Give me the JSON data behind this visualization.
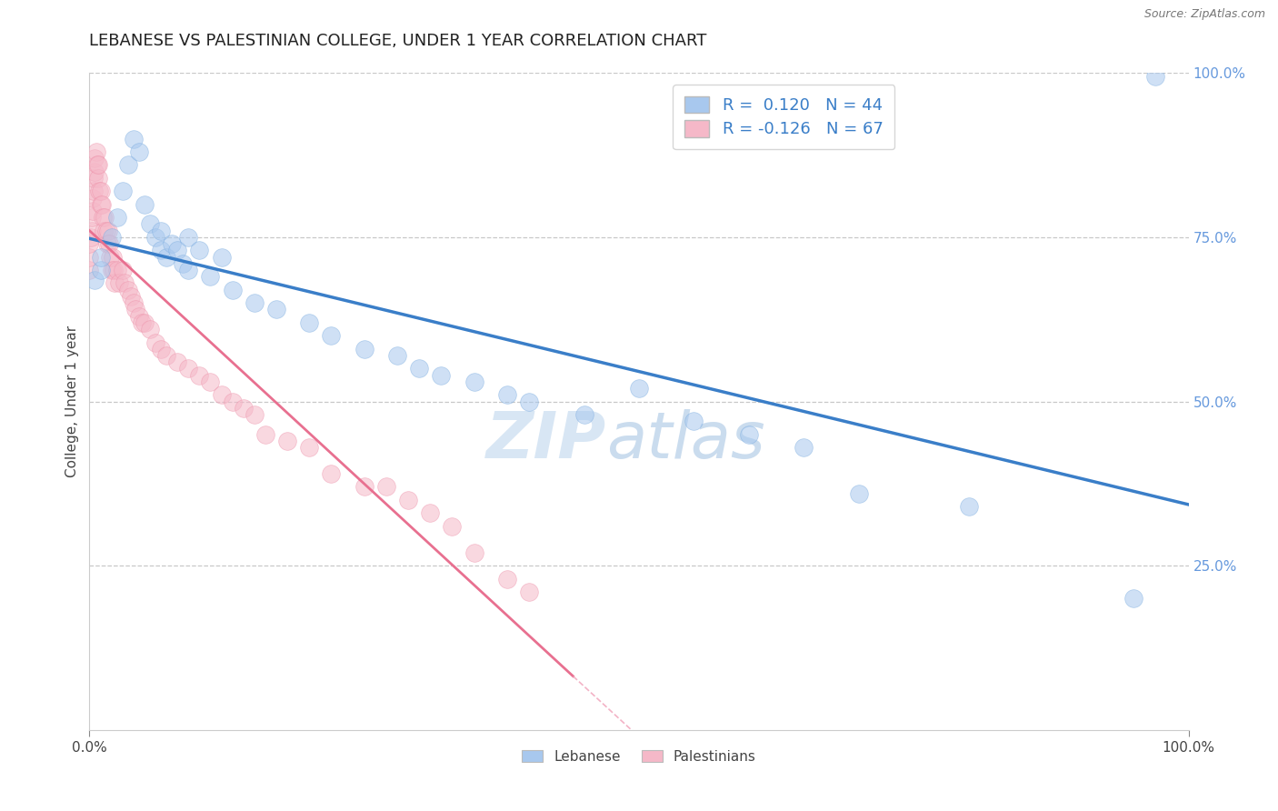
{
  "title": "LEBANESE VS PALESTINIAN COLLEGE, UNDER 1 YEAR CORRELATION CHART",
  "source": "Source: ZipAtlas.com",
  "ylabel": "College, Under 1 year",
  "legend_blue_r": "0.120",
  "legend_blue_n": "44",
  "legend_pink_r": "-0.126",
  "legend_pink_n": "67",
  "watermark_left": "ZIP",
  "watermark_right": "atlas",
  "blue_color": "#A8C8EE",
  "blue_edge_color": "#7AABDF",
  "pink_color": "#F5B8C8",
  "pink_edge_color": "#EE90A8",
  "blue_line_color": "#3A7EC8",
  "pink_line_color": "#E87090",
  "pink_dash_color": "#F0A0B8",
  "grid_color": "#BBBBBB",
  "background_color": "#FFFFFF",
  "right_tick_color": "#6699DD",
  "blue_scatter_x": [
    0.005,
    0.01,
    0.01,
    0.02,
    0.025,
    0.03,
    0.035,
    0.04,
    0.045,
    0.05,
    0.055,
    0.06,
    0.065,
    0.065,
    0.07,
    0.075,
    0.08,
    0.085,
    0.09,
    0.09,
    0.1,
    0.11,
    0.12,
    0.13,
    0.15,
    0.17,
    0.2,
    0.22,
    0.25,
    0.28,
    0.3,
    0.32,
    0.35,
    0.38,
    0.4,
    0.45,
    0.5,
    0.55,
    0.6,
    0.65,
    0.7,
    0.8,
    0.95,
    0.97
  ],
  "blue_scatter_y": [
    0.685,
    0.7,
    0.72,
    0.75,
    0.78,
    0.82,
    0.86,
    0.9,
    0.88,
    0.8,
    0.77,
    0.75,
    0.73,
    0.76,
    0.72,
    0.74,
    0.73,
    0.71,
    0.75,
    0.7,
    0.73,
    0.69,
    0.72,
    0.67,
    0.65,
    0.64,
    0.62,
    0.6,
    0.58,
    0.57,
    0.55,
    0.54,
    0.53,
    0.51,
    0.5,
    0.48,
    0.52,
    0.47,
    0.45,
    0.43,
    0.36,
    0.34,
    0.2,
    0.995
  ],
  "pink_scatter_x": [
    0.0,
    0.0,
    0.0,
    0.001,
    0.002,
    0.002,
    0.003,
    0.003,
    0.004,
    0.004,
    0.005,
    0.005,
    0.006,
    0.007,
    0.008,
    0.008,
    0.009,
    0.01,
    0.01,
    0.011,
    0.012,
    0.013,
    0.014,
    0.015,
    0.016,
    0.017,
    0.018,
    0.019,
    0.02,
    0.021,
    0.022,
    0.023,
    0.025,
    0.027,
    0.03,
    0.032,
    0.035,
    0.038,
    0.04,
    0.042,
    0.045,
    0.048,
    0.05,
    0.055,
    0.06,
    0.065,
    0.07,
    0.08,
    0.09,
    0.1,
    0.11,
    0.12,
    0.13,
    0.14,
    0.15,
    0.16,
    0.18,
    0.2,
    0.22,
    0.25,
    0.27,
    0.29,
    0.31,
    0.33,
    0.35,
    0.38,
    0.4
  ],
  "pink_scatter_y": [
    0.7,
    0.72,
    0.74,
    0.75,
    0.76,
    0.78,
    0.79,
    0.81,
    0.82,
    0.84,
    0.85,
    0.87,
    0.88,
    0.86,
    0.84,
    0.86,
    0.82,
    0.8,
    0.82,
    0.8,
    0.78,
    0.76,
    0.78,
    0.76,
    0.74,
    0.76,
    0.74,
    0.72,
    0.7,
    0.72,
    0.7,
    0.68,
    0.7,
    0.68,
    0.7,
    0.68,
    0.67,
    0.66,
    0.65,
    0.64,
    0.63,
    0.62,
    0.62,
    0.61,
    0.59,
    0.58,
    0.57,
    0.56,
    0.55,
    0.54,
    0.53,
    0.51,
    0.5,
    0.49,
    0.48,
    0.45,
    0.44,
    0.43,
    0.39,
    0.37,
    0.37,
    0.35,
    0.33,
    0.31,
    0.27,
    0.23,
    0.21
  ]
}
